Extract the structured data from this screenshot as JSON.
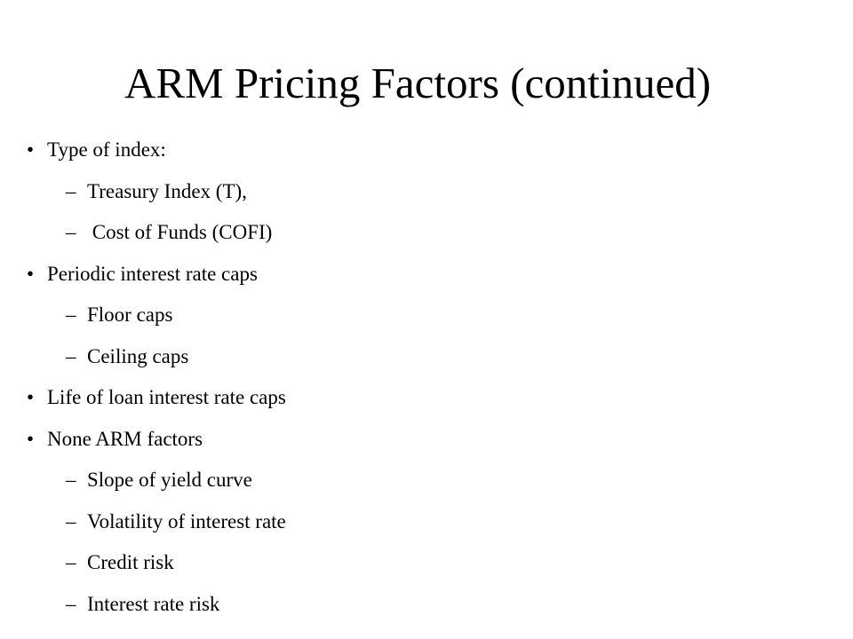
{
  "slide": {
    "title": "ARM Pricing Factors (continued)",
    "items": [
      {
        "level": 1,
        "marker": "•",
        "text": "Type of index:"
      },
      {
        "level": 2,
        "marker": "–",
        "text": "Treasury Index (T),"
      },
      {
        "level": 2,
        "marker": "–",
        "text": " Cost of Funds (COFI)"
      },
      {
        "level": 1,
        "marker": "•",
        "text": "Periodic interest rate caps"
      },
      {
        "level": 2,
        "marker": "–",
        "text": "Floor caps"
      },
      {
        "level": 2,
        "marker": "–",
        "text": "Ceiling caps"
      },
      {
        "level": 1,
        "marker": "•",
        "text": "Life of loan interest rate caps"
      },
      {
        "level": 1,
        "marker": "•",
        "text": "None ARM factors"
      },
      {
        "level": 2,
        "marker": "–",
        "text": "Slope of yield curve"
      },
      {
        "level": 2,
        "marker": "–",
        "text": "Volatility of interest rate"
      },
      {
        "level": 2,
        "marker": "–",
        "text": "Credit risk"
      },
      {
        "level": 2,
        "marker": "–",
        "text": "Interest rate risk"
      }
    ]
  }
}
